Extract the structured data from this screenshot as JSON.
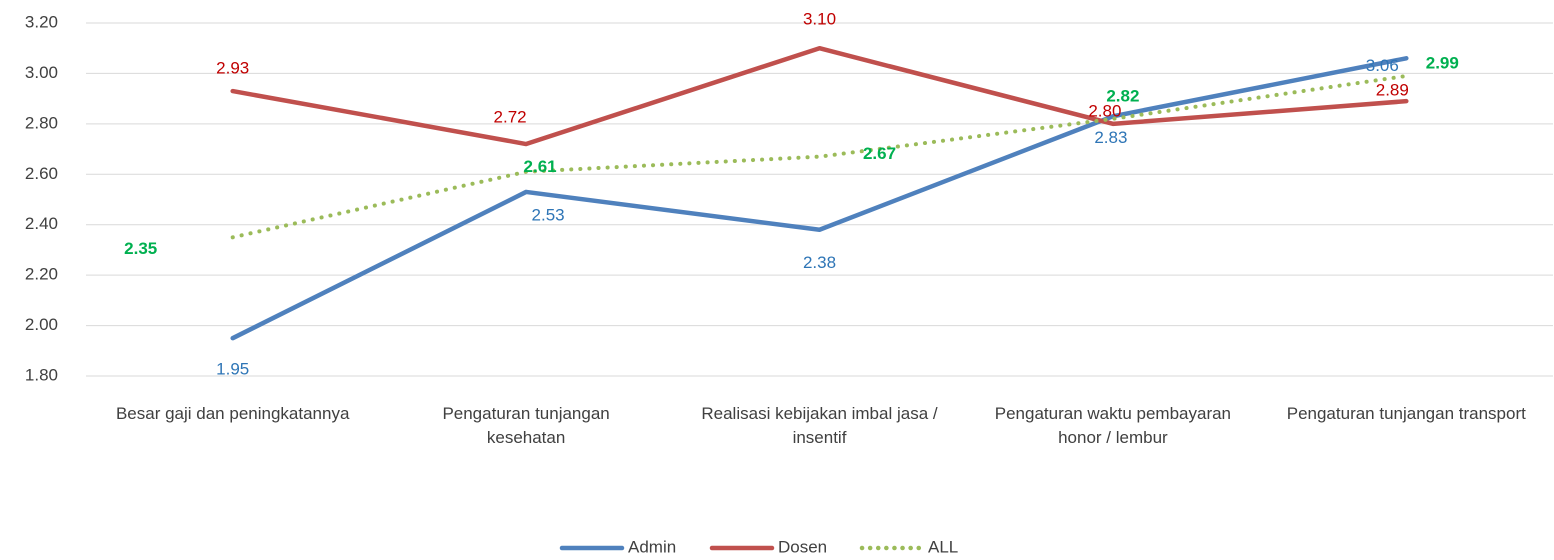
{
  "chart_data": {
    "type": "line",
    "categories": [
      "Besar gaji dan peningkatannya",
      "Pengaturan  tunjangan kesehatan",
      "Realisasi kebijakan imbal jasa / insentif",
      "Pengaturan waktu pembayaran honor / lembur",
      "Pengaturan tunjangan transport"
    ],
    "series": [
      {
        "name": "Admin",
        "color": "#4f81bd",
        "label_color": "#2e75b6",
        "style": "solid",
        "values": [
          1.95,
          2.53,
          2.38,
          2.83,
          3.06
        ],
        "value_labels": [
          "1.95",
          "2.53",
          "2.38",
          "2.83",
          "3.06"
        ]
      },
      {
        "name": "Dosen",
        "color": "#c0504d",
        "label_color": "#c00000",
        "style": "solid",
        "values": [
          2.93,
          2.72,
          3.1,
          2.8,
          2.89
        ],
        "value_labels": [
          "2.93",
          "2.72",
          "3.10",
          "2.80",
          "2.89"
        ]
      },
      {
        "name": "ALL",
        "color": "#9bbb59",
        "label_color": "#00b050",
        "style": "dotted",
        "values": [
          2.35,
          2.61,
          2.67,
          2.82,
          2.99
        ],
        "value_labels": [
          "2.35",
          "2.61",
          "2.67",
          "2.82",
          "2.99"
        ]
      }
    ],
    "ylim": [
      1.8,
      3.2
    ],
    "yticks": [
      {
        "value": 1.8,
        "label": "1.80"
      },
      {
        "value": 2.0,
        "label": "2.00"
      },
      {
        "value": 2.2,
        "label": "2.20"
      },
      {
        "value": 2.4,
        "label": "2.40"
      },
      {
        "value": 2.6,
        "label": "2.60"
      },
      {
        "value": 2.8,
        "label": "2.80"
      },
      {
        "value": 3.0,
        "label": "3.00"
      },
      {
        "value": 3.2,
        "label": "3.20"
      }
    ],
    "grid": true,
    "legend": "bottom"
  }
}
